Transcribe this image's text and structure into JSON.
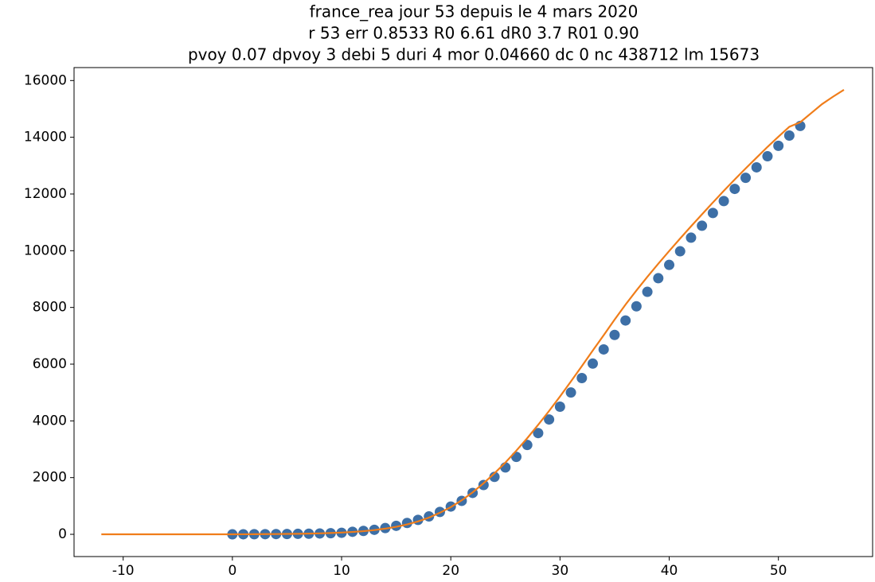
{
  "chart_data": {
    "type": "scatter",
    "title_lines": [
      "france_rea jour 53 depuis le 4 mars 2020",
      "r 53 err 0.8533 R0 6.61 dR0 3.7 R01 0.90",
      "pvoy 0.07 dpvoy 3 debi 5 duri 4 mor 0.04660 dc 0 nc 438712 lm 15673"
    ],
    "series": [
      {
        "type": "scatter",
        "color": "#3d6fa6",
        "x": [
          0,
          1,
          2,
          3,
          4,
          5,
          6,
          7,
          8,
          9,
          10,
          11,
          12,
          13,
          14,
          15,
          16,
          17,
          18,
          19,
          20,
          21,
          22,
          23,
          24,
          25,
          26,
          27,
          28,
          29,
          30,
          31,
          32,
          33,
          34,
          35,
          36,
          37,
          38,
          39,
          40,
          41,
          42,
          43,
          44,
          45,
          46,
          47,
          48,
          49,
          50,
          51,
          52
        ],
        "values": [
          0,
          2,
          4,
          6,
          9,
          12,
          17,
          22,
          30,
          40,
          55,
          90,
          120,
          160,
          220,
          300,
          400,
          510,
          630,
          790,
          980,
          1180,
          1460,
          1740,
          2025,
          2360,
          2730,
          3150,
          3570,
          4050,
          4500,
          5000,
          5510,
          6020,
          6520,
          7030,
          7540,
          8040,
          8550,
          9030,
          9500,
          9980,
          10460,
          10880,
          11330,
          11750,
          12180,
          12570,
          12940,
          13330,
          13700,
          14060,
          14400
        ]
      },
      {
        "type": "line",
        "color": "#f07d1a",
        "x": [
          -12,
          -11,
          -10,
          -9,
          -8,
          -7,
          -6,
          -5,
          -4,
          -3,
          -2,
          -1,
          0,
          1,
          2,
          3,
          4,
          5,
          6,
          7,
          8,
          9,
          10,
          11,
          12,
          13,
          14,
          15,
          16,
          17,
          18,
          19,
          20,
          21,
          22,
          23,
          24,
          25,
          26,
          27,
          28,
          29,
          30,
          31,
          32,
          33,
          34,
          35,
          36,
          37,
          38,
          39,
          40,
          41,
          42,
          43,
          44,
          45,
          46,
          47,
          48,
          49,
          50,
          51,
          52,
          53,
          54,
          55,
          56
        ],
        "values": [
          0,
          0,
          0,
          0,
          0,
          0,
          0,
          0,
          0,
          0,
          0,
          0,
          0,
          2,
          4,
          7,
          10,
          14,
          19,
          26,
          35,
          47,
          63,
          84,
          112,
          150,
          200,
          265,
          350,
          455,
          590,
          760,
          960,
          1200,
          1480,
          1800,
          2150,
          2530,
          2950,
          3390,
          3860,
          4350,
          4860,
          5390,
          5930,
          6480,
          7020,
          7570,
          8100,
          8600,
          9080,
          9540,
          9990,
          10430,
          10860,
          11280,
          11700,
          12110,
          12510,
          12900,
          13280,
          13660,
          14020,
          14370,
          14530,
          14850,
          15170,
          15430,
          15673
        ]
      }
    ],
    "xlim": [
      -14.5,
      58.7
    ],
    "ylim": [
      -784,
      16457
    ],
    "xticks": [
      -10,
      0,
      10,
      20,
      30,
      40,
      50
    ],
    "yticks": [
      0,
      2000,
      4000,
      6000,
      8000,
      10000,
      12000,
      14000,
      16000
    ]
  }
}
